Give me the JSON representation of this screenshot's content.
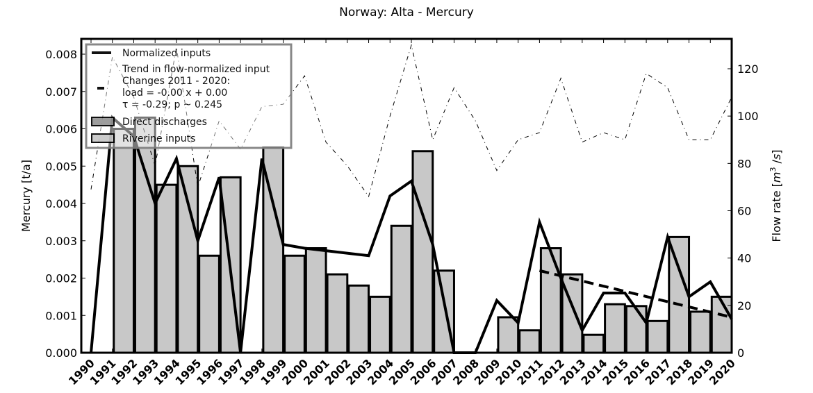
{
  "chart_data": {
    "type": "bar",
    "title": "Norway: Alta - Mercury",
    "xlabel": "",
    "ylabel": "Mercury [t/a]",
    "ylabel_right": "Flow rate [m³ /s]",
    "ylim": [
      0,
      0.0083
    ],
    "ylim_right": [
      0,
      130
    ],
    "yticks": [
      "0.000",
      "0.001",
      "0.002",
      "0.003",
      "0.004",
      "0.005",
      "0.006",
      "0.007",
      "0.008"
    ],
    "yticks_right": [
      "0",
      "20",
      "40",
      "60",
      "80",
      "100",
      "120"
    ],
    "categories": [
      "1990",
      "1991",
      "1992",
      "1993",
      "1994",
      "1995",
      "1996",
      "1997",
      "1998",
      "1999",
      "2000",
      "2001",
      "2002",
      "2003",
      "2004",
      "2005",
      "2006",
      "2007",
      "2008",
      "2009",
      "2010",
      "2011",
      "2012",
      "2013",
      "2014",
      "2015",
      "2016",
      "2017",
      "2018",
      "2019",
      "2020"
    ],
    "series": [
      {
        "name": "Riverine inputs",
        "type": "bar",
        "color": "#c8c8c8",
        "values": [
          0,
          0.006,
          0.0063,
          0.0045,
          0.005,
          0.0026,
          0.0047,
          0,
          0.0055,
          0.0026,
          0.0028,
          0.0021,
          0.0018,
          0.0015,
          0.0034,
          0.0054,
          0.0022,
          0,
          0,
          0.00095,
          0.0006,
          0.0028,
          0.0021,
          0.00048,
          0.0013,
          0.00125,
          0.00085,
          0.0031,
          0.0011,
          0.0015,
          null
        ]
      },
      {
        "name": "Direct discharges",
        "type": "bar",
        "color": "#969696",
        "values": [
          0,
          0,
          0,
          0,
          0,
          0,
          0,
          0,
          0,
          0,
          0,
          0,
          0,
          0,
          0,
          0,
          0,
          0,
          0,
          0,
          0,
          0,
          0,
          0,
          0,
          0,
          0,
          0,
          0,
          0,
          null
        ]
      },
      {
        "name": "Normalized inputs",
        "type": "line",
        "color": "#000000",
        "values": [
          0,
          0.0063,
          0.0058,
          0.004,
          0.0052,
          0.003,
          0.0047,
          0,
          0.0052,
          0.0029,
          0.0028,
          null,
          null,
          0.0026,
          0.0042,
          0.0046,
          0.0029,
          0,
          0,
          0.0014,
          0.0008,
          0.0035,
          0.002,
          0.0006,
          0.0016,
          0.0016,
          0.0008,
          0.0031,
          0.0015,
          0.0019,
          0.0009
        ]
      },
      {
        "name": "Flow rate",
        "type": "line",
        "axis": "right",
        "style": "dash-dot",
        "color": "#000000",
        "values": [
          69,
          125,
          108,
          79,
          129,
          70,
          98,
          86,
          104,
          105,
          117,
          89,
          79,
          66,
          100,
          130,
          90,
          112,
          98,
          77,
          90,
          93,
          116,
          89,
          93,
          90,
          118,
          112,
          90,
          90,
          108
        ]
      },
      {
        "name": "Trend in flow-normalized input",
        "type": "line",
        "style": "dashed",
        "color": "#000000",
        "x": [
          "2011",
          "2020"
        ],
        "values": [
          0.0022,
          0.00095
        ]
      }
    ],
    "legend": {
      "position": "upper left",
      "entries": [
        {
          "label": "Normalized inputs",
          "marker": "solid-line"
        },
        {
          "label": "Trend in flow-normalized input\nChanges 2011 - 2020:\nload = -0.00 x +  0.00\nτ = -0.29; p ~ 0.245",
          "marker": "dashed-line"
        },
        {
          "label": "Direct discharges",
          "marker": "dark-gray-box"
        },
        {
          "label": "Riverine inputs",
          "marker": "light-gray-box"
        }
      ]
    },
    "grid": false
  },
  "legend_lines": {
    "normalized": "Normalized inputs",
    "trend_1": "Trend in flow-normalized input",
    "trend_2": "Changes 2011 - 2020:",
    "trend_3": "load = -0.00 x +  0.00",
    "trend_4": "τ = -0.29; p ~ 0.245",
    "direct": "Direct discharges",
    "riverine": "Riverine inputs"
  },
  "colors": {
    "riverine": "#c8c8c8",
    "direct": "#969696",
    "legend_border": "#808080",
    "line": "#000000"
  }
}
